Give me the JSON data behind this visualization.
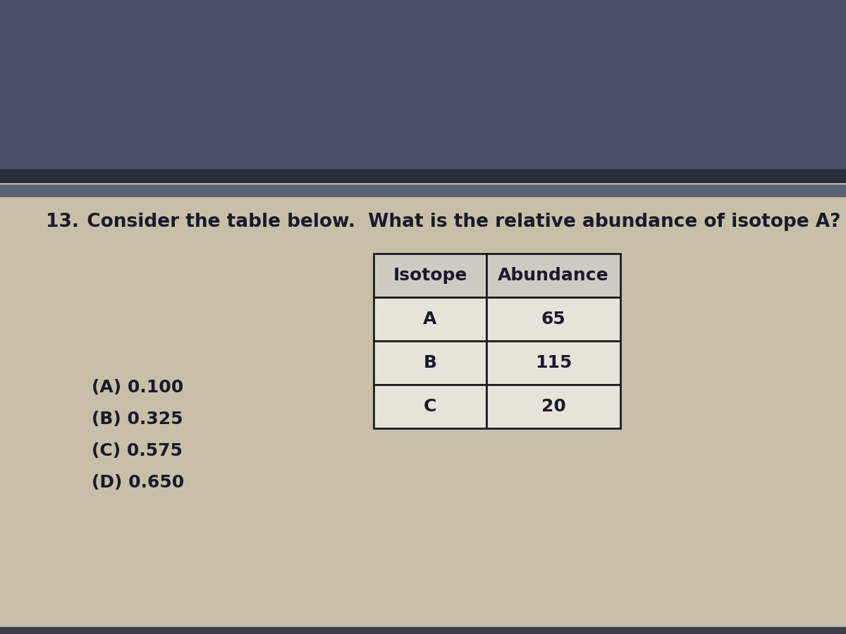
{
  "question_number": "13.",
  "question_text": "  Consider the table below.  What is the relative abundance of isotope A?",
  "table_headers": [
    "Isotope",
    "Abundance"
  ],
  "table_rows": [
    [
      "A",
      "65"
    ],
    [
      "B",
      "115"
    ],
    [
      "C",
      "20"
    ]
  ],
  "choices": [
    "(A) 0.100",
    "(B) 0.325",
    "(C) 0.575",
    "(D) 0.650"
  ],
  "bg_color_top": "#4a5068",
  "bg_color_top2": "#6a7088",
  "bg_color_main": "#c8bfa8",
  "text_color": "#1a1a2e",
  "table_header_bg": "#d0cbc2",
  "table_cell_bg": "#e8e3d8",
  "table_border_color": "#1a1a2e",
  "question_fontsize": 19,
  "choice_fontsize": 18,
  "table_fontsize": 18
}
